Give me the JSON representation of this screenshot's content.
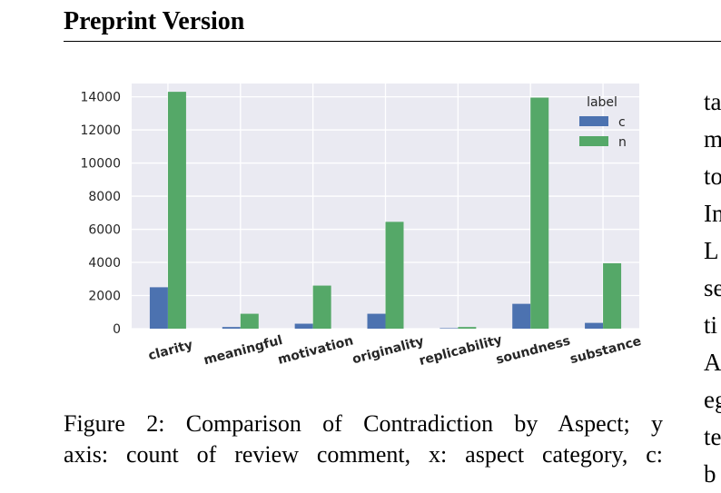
{
  "header": {
    "title": "Preprint Version"
  },
  "figure": {
    "caption_lines": [
      "Figure 2: Comparison of Contradiction by Aspect; y",
      "axis: count of review comment, x: aspect category, c:"
    ]
  },
  "right_column_fragments": [
    "ta",
    "m",
    "to",
    "In",
    "L",
    "se",
    "ti",
    "A",
    "eg",
    "te",
    "b"
  ],
  "chart_data": {
    "type": "bar",
    "categories": [
      "clarity",
      "meaningful",
      "motivation",
      "originality",
      "replicability",
      "soundness",
      "substance"
    ],
    "series": [
      {
        "name": "c",
        "values": [
          2500,
          100,
          300,
          900,
          30,
          1500,
          350
        ]
      },
      {
        "name": "n",
        "values": [
          14300,
          900,
          2600,
          6450,
          100,
          13950,
          3950
        ]
      }
    ],
    "yticks": [
      0,
      2000,
      4000,
      6000,
      8000,
      10000,
      12000,
      14000
    ],
    "ylim": [
      0,
      14800
    ],
    "legend_title": "label",
    "legend_position": "top-right",
    "grid": true,
    "colors": {
      "c": "#4c72b0",
      "n": "#55a868",
      "background": "#eaeaf2",
      "grid": "#ffffff"
    }
  }
}
